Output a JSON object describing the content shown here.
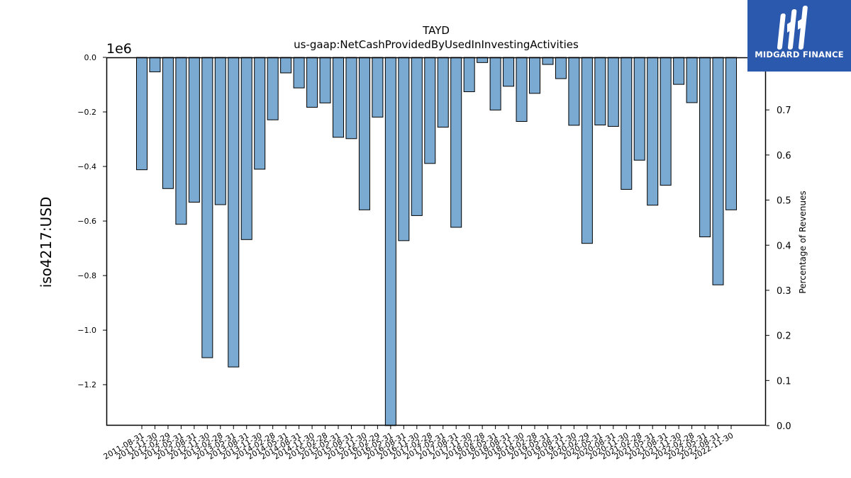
{
  "logo": {
    "text": "MIDGARD FINANCE",
    "background_color": "#2b59ad",
    "text_color": "#ffffff"
  },
  "chart_data": {
    "type": "bar",
    "title": "TAYD",
    "subtitle": "us-gaap:NetCashProvidedByUsedInInvestingActivities",
    "ylabel": "iso4217:USD",
    "ylabel_right": "Percentage of Revenues",
    "offset_label": "1e6",
    "ylim": [
      -1.35,
      0.0
    ],
    "ylim_right": [
      0.0,
      0.8165
    ],
    "yticks": [
      0.0,
      -0.2,
      -0.4,
      -0.6,
      -0.8,
      -1.0,
      -1.2
    ],
    "yticks_right": [
      0.0,
      0.1,
      0.2,
      0.3,
      0.4,
      0.5,
      0.6,
      0.7
    ],
    "bar_color": "#7aaad2",
    "bar_edge_color": "#000000",
    "grid": false,
    "categories": [
      "2011-08-31",
      "2011-11-30",
      "2012-02-29",
      "2012-05-31",
      "2012-08-31",
      "2012-11-30",
      "2013-02-28",
      "2013-05-31",
      "2013-08-31",
      "2013-11-30",
      "2014-02-28",
      "2014-05-31",
      "2014-08-31",
      "2014-11-30",
      "2015-02-28",
      "2015-05-31",
      "2015-08-31",
      "2015-11-30",
      "2016-02-29",
      "2016-05-31",
      "2016-08-31",
      "2016-11-30",
      "2017-02-28",
      "2017-05-31",
      "2017-08-31",
      "2017-11-30",
      "2018-02-28",
      "2018-05-31",
      "2018-08-31",
      "2018-11-30",
      "2019-02-28",
      "2019-05-31",
      "2019-08-31",
      "2019-11-30",
      "2020-02-29",
      "2020-05-31",
      "2020-08-31",
      "2020-11-30",
      "2021-02-28",
      "2021-05-31",
      "2021-08-31",
      "2021-11-30",
      "2022-02-28",
      "2022-05-31",
      "2022-08-31",
      "2022-11-30"
    ],
    "values": [
      -0.412,
      -0.053,
      -0.481,
      -0.612,
      -0.531,
      -1.101,
      -0.54,
      -1.135,
      -0.668,
      -0.41,
      -0.229,
      -0.057,
      -0.112,
      -0.183,
      -0.167,
      -0.293,
      -0.298,
      -0.559,
      -0.219,
      -1.35,
      -0.672,
      -0.58,
      -0.389,
      -0.256,
      -0.623,
      -0.126,
      -0.019,
      -0.193,
      -0.106,
      -0.235,
      -0.132,
      -0.026,
      -0.078,
      -0.249,
      -0.682,
      -0.248,
      -0.253,
      -0.484,
      -0.377,
      -0.542,
      -0.469,
      -0.099,
      -0.166,
      -0.658,
      -0.834,
      -0.559
    ]
  }
}
